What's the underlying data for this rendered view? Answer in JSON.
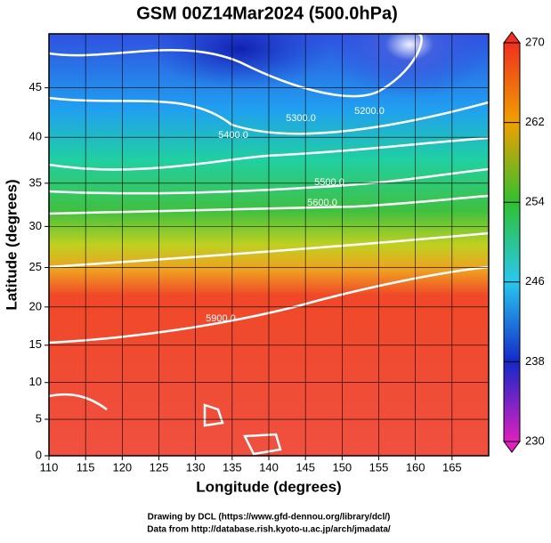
{
  "chart_data": {
    "type": "contour",
    "title": "GSM 00Z14Mar2024 (500.0hPa)",
    "x_label": "Longitude (degrees)",
    "y_label": "Latitude  (degrees)",
    "xlim": [
      110,
      170
    ],
    "ylim": [
      0,
      50
    ],
    "xticks": [
      110,
      115,
      120,
      125,
      130,
      135,
      140,
      145,
      150,
      155,
      160,
      165
    ],
    "yticks": [
      0,
      5,
      10,
      15,
      20,
      25,
      30,
      35,
      40,
      45
    ],
    "projection": "mercator",
    "grid": true,
    "colorbar": {
      "lim": [
        230,
        270
      ],
      "ticks": [
        230,
        238,
        246,
        254,
        262,
        270
      ],
      "colors": [
        "#e020c0",
        "#1428c8",
        "#28c8f0",
        "#30c030",
        "#f0a000",
        "#f03020"
      ]
    },
    "contour_labels": [
      "5200.0",
      "5300.0",
      "5400.0",
      "5500.0",
      "5600.0",
      "5900.0"
    ],
    "credits": [
      "Drawing by DCL (https://www.gfd-dennou.org/library/dcl/)",
      "Data from http://database.rish.kyoto-u.ac.jp/arch/jmadata/"
    ]
  }
}
